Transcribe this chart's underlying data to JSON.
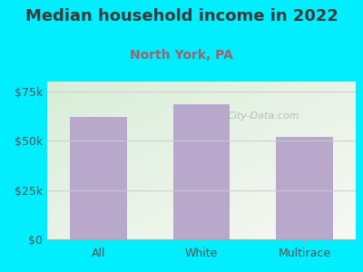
{
  "categories": [
    "All",
    "White",
    "Multirace"
  ],
  "values": [
    62000,
    68500,
    52000
  ],
  "bar_color": "#b8a8cc",
  "title": "Median household income in 2022",
  "subtitle": "North York, PA",
  "title_color": "#3a3a3a",
  "subtitle_color": "#a06070",
  "background_color": "#00EEFF",
  "plot_bg_top_left": "#d8eed8",
  "plot_bg_bottom_right": "#f8f8f5",
  "ylim": [
    0,
    80000
  ],
  "yticks": [
    0,
    25000,
    50000,
    75000
  ],
  "ytick_labels": [
    "$0",
    "$25k",
    "$50k",
    "$75k"
  ],
  "watermark": "City-Data.com",
  "grid_color": "#cccccc",
  "title_fontsize": 13,
  "subtitle_fontsize": 10,
  "tick_fontsize": 9,
  "bar_width": 0.55
}
